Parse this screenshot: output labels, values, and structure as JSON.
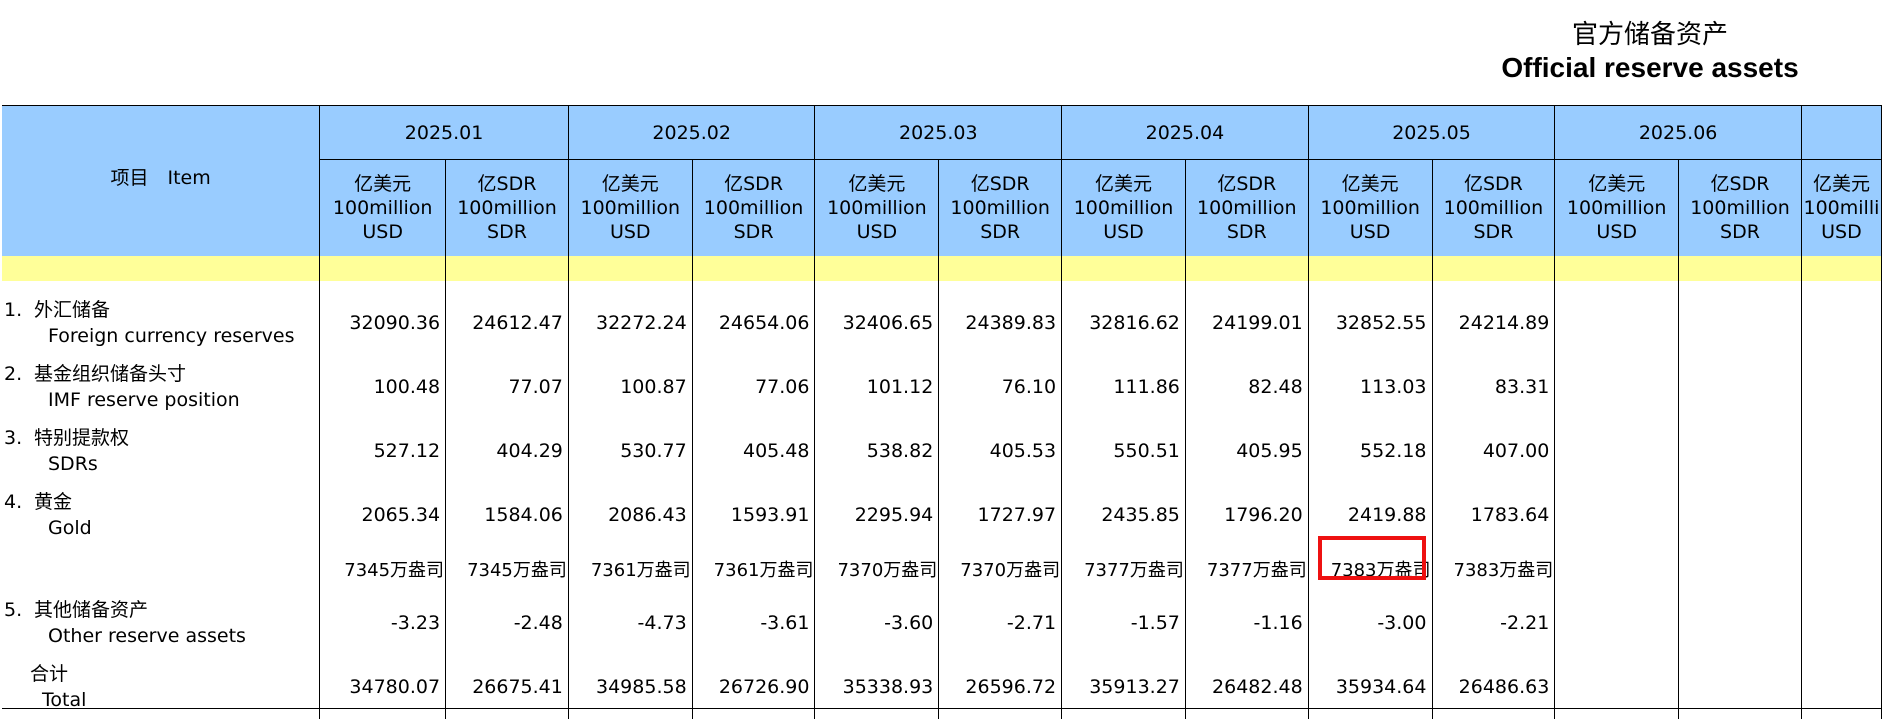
{
  "header": {
    "title_cn": "官方储备资产",
    "title_en": "Official reserve assets"
  },
  "table": {
    "item_header": "项目　Item",
    "months": [
      "2025.01",
      "2025.02",
      "2025.03",
      "2025.04",
      "2025.05",
      "2025.06",
      ""
    ],
    "units": {
      "usd": [
        "亿美元",
        "100million",
        "USD"
      ],
      "sdr": [
        "亿SDR",
        "100million",
        "SDR"
      ],
      "partial_usd": [
        "亿美元",
        "100milli",
        "USD"
      ]
    },
    "rows": [
      {
        "num": "1.",
        "cn": "外汇储备",
        "en": "Foreign currency reserves",
        "values": [
          "32090.36",
          "24612.47",
          "32272.24",
          "24654.06",
          "32406.65",
          "24389.83",
          "32816.62",
          "24199.01",
          "32852.55",
          "24214.89",
          "",
          "",
          ""
        ]
      },
      {
        "num": "2.",
        "cn": "基金组织储备头寸",
        "en": "IMF reserve position",
        "values": [
          "100.48",
          "77.07",
          "100.87",
          "77.06",
          "101.12",
          "76.10",
          "111.86",
          "82.48",
          "113.03",
          "83.31",
          "",
          "",
          ""
        ]
      },
      {
        "num": "3.",
        "cn": "特别提款权",
        "en": "SDRs",
        "values": [
          "527.12",
          "404.29",
          "530.77",
          "405.48",
          "538.82",
          "405.53",
          "550.51",
          "405.95",
          "552.18",
          "407.00",
          "",
          "",
          ""
        ]
      },
      {
        "num": "4.",
        "cn": "黄金",
        "en": "Gold",
        "values": [
          "2065.34",
          "1584.06",
          "2086.43",
          "1593.91",
          "2295.94",
          "1727.97",
          "2435.85",
          "1796.20",
          "2419.88",
          "1783.64",
          "",
          "",
          ""
        ]
      }
    ],
    "gold_ounces": [
      "7345万盎司",
      "7345万盎司",
      "7361万盎司",
      "7361万盎司",
      "7370万盎司",
      "7370万盎司",
      "7377万盎司",
      "7377万盎司",
      "7383万盎司",
      "7383万盎司",
      "",
      "",
      ""
    ],
    "other_row": {
      "num": "5.",
      "cn": "其他储备资产",
      "en": "Other reserve assets",
      "values": [
        "-3.23",
        "-2.48",
        "-4.73",
        "-3.61",
        "-3.60",
        "-2.71",
        "-1.57",
        "-1.16",
        "-3.00",
        "-2.21",
        "",
        "",
        ""
      ]
    },
    "total_row": {
      "cn": "合计",
      "en": "Total",
      "values": [
        "34780.07",
        "26675.41",
        "34985.58",
        "26726.90",
        "35338.93",
        "26596.72",
        "35913.27",
        "26482.48",
        "35934.64",
        "26486.63",
        "",
        "",
        ""
      ]
    },
    "highlight": {
      "row": "gold_ounces",
      "col": 8,
      "color": "#ee1111"
    }
  },
  "colors": {
    "header_blue": "#99ccff",
    "band_yellow": "#ffff99",
    "highlight_red": "#ee1111"
  }
}
